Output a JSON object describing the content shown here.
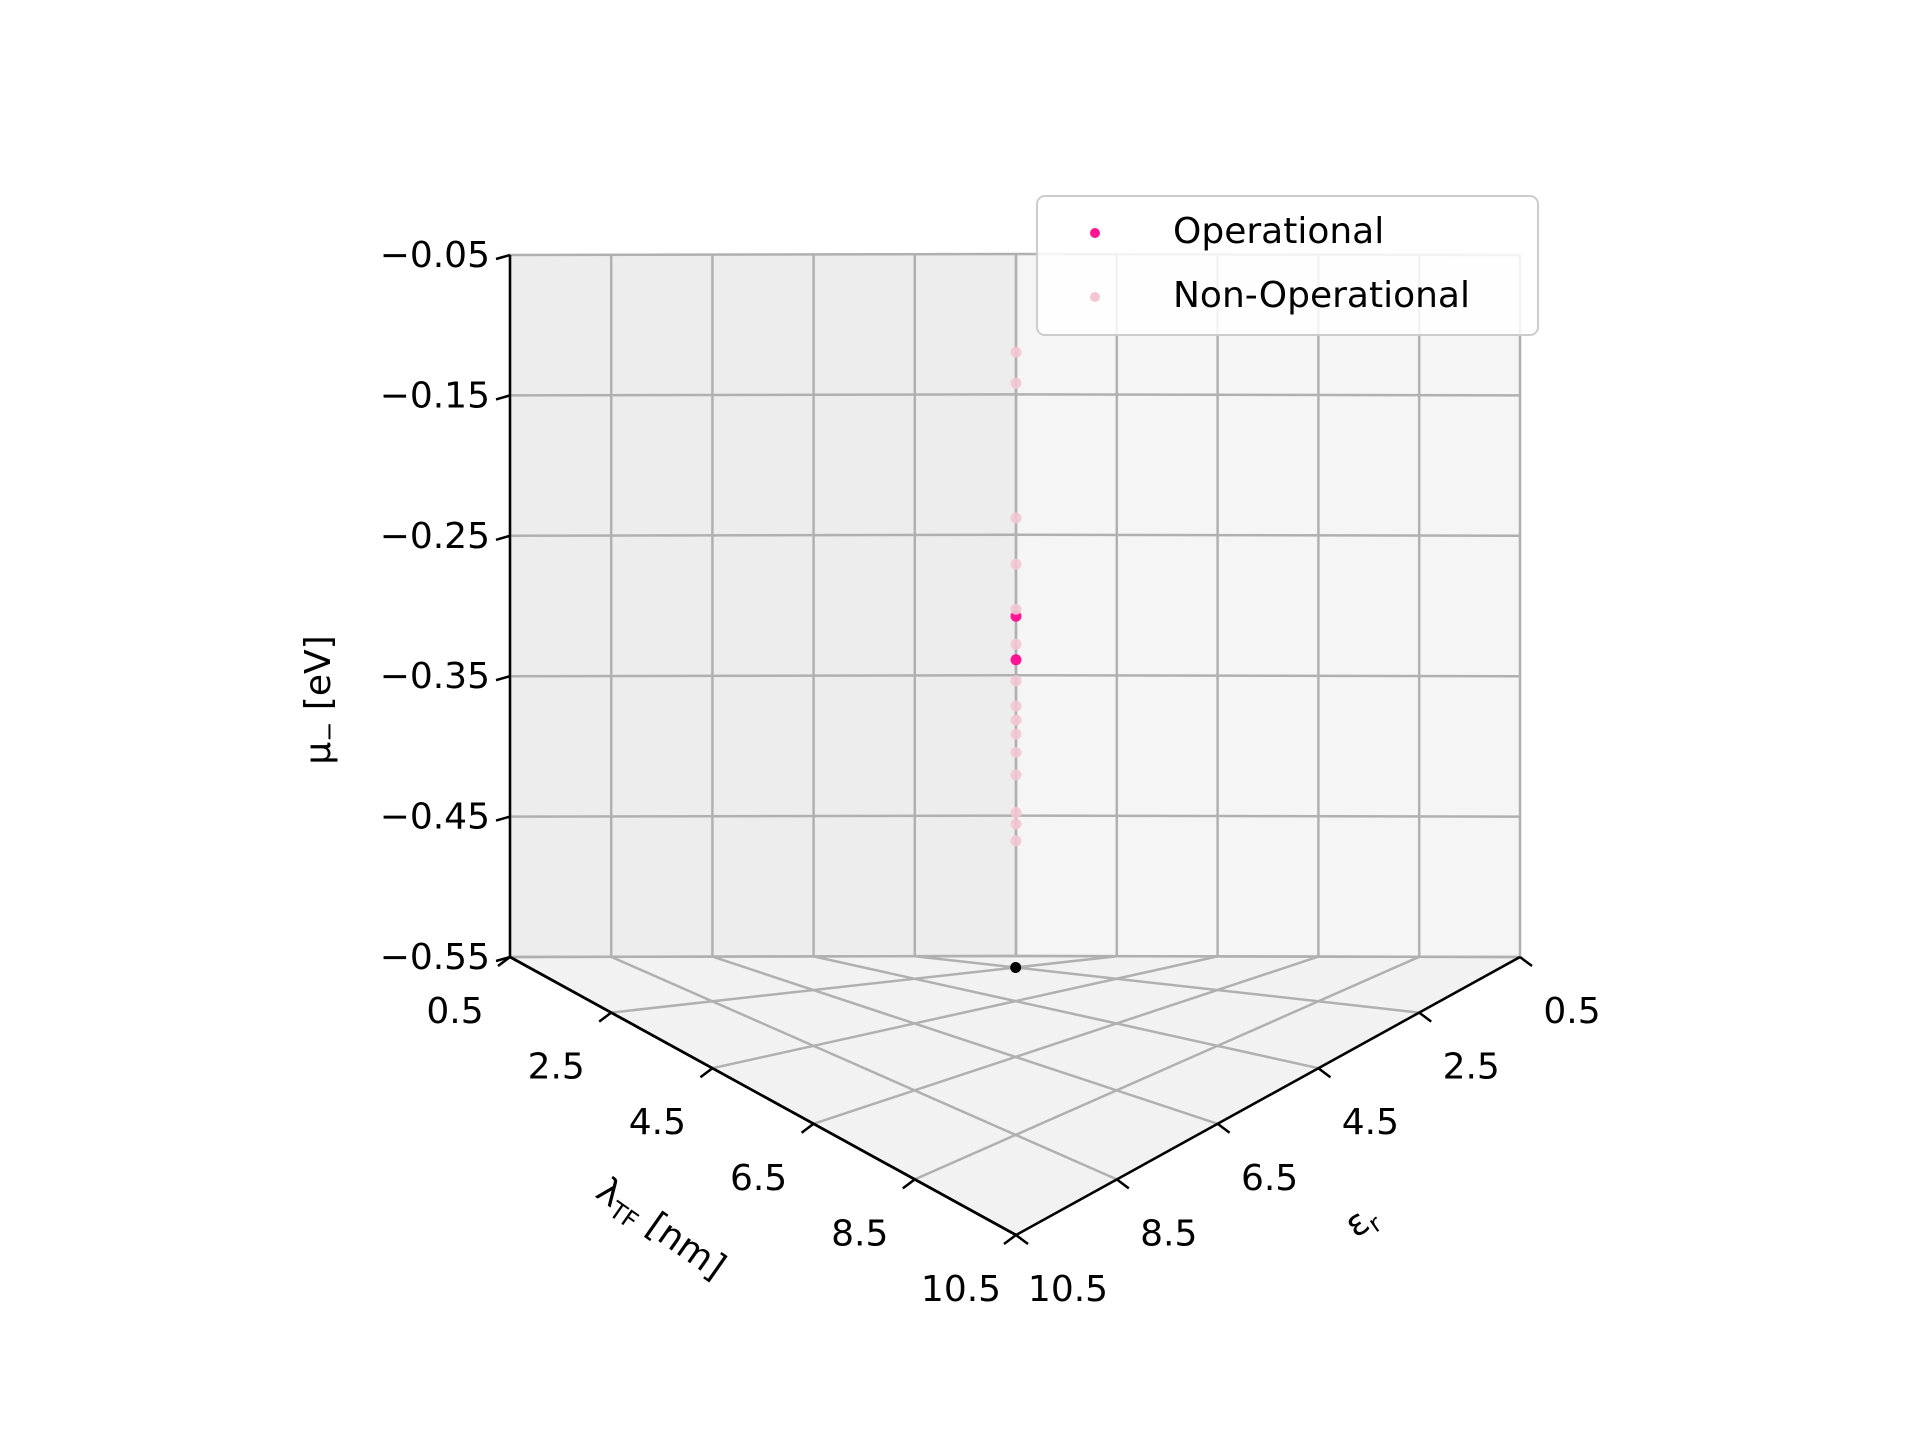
{
  "chart_data": {
    "type": "scatter",
    "projection": "3d",
    "title": "",
    "axes": {
      "x": {
        "label": "ε",
        "label_sub": "r",
        "ticks": [
          "0.5",
          "2.5",
          "4.5",
          "6.5",
          "8.5",
          "10.5"
        ],
        "range": [
          0.5,
          10.5
        ]
      },
      "y": {
        "label": "λ",
        "label_sub": "TF",
        "label_suffix": " [nm]",
        "ticks": [
          "0.5",
          "2.5",
          "4.5",
          "6.5",
          "8.5",
          "10.5"
        ],
        "range": [
          0.5,
          10.5
        ]
      },
      "z": {
        "label": "μ",
        "label_sub": "−",
        "label_suffix": " [eV]",
        "ticks": [
          "−0.05",
          "−0.15",
          "−0.25",
          "−0.35",
          "−0.45",
          "−0.55"
        ],
        "range": [
          -0.55,
          -0.05
        ]
      }
    },
    "grid": true,
    "legend": {
      "placement": "top-right",
      "entries": [
        {
          "name": "Operational",
          "color": "#ff1493"
        },
        {
          "name": "Non-Operational",
          "color": "#f3c6d3"
        }
      ]
    },
    "series": [
      {
        "name": "Operational",
        "color": "#ff1493",
        "points": [
          {
            "x": 0.5,
            "y": 0.5,
            "z": -0.308
          },
          {
            "x": 0.5,
            "y": 0.5,
            "z": -0.339
          }
        ]
      },
      {
        "name": "Non-Operational",
        "color": "#f3c6d3",
        "points": [
          {
            "x": 0.5,
            "y": 0.5,
            "z": -0.12
          },
          {
            "x": 0.5,
            "y": 0.5,
            "z": -0.142
          },
          {
            "x": 0.5,
            "y": 0.5,
            "z": -0.238
          },
          {
            "x": 0.5,
            "y": 0.5,
            "z": -0.271
          },
          {
            "x": 0.5,
            "y": 0.5,
            "z": -0.303
          },
          {
            "x": 0.5,
            "y": 0.5,
            "z": -0.328
          },
          {
            "x": 0.5,
            "y": 0.5,
            "z": -0.354
          },
          {
            "x": 0.5,
            "y": 0.5,
            "z": -0.372
          },
          {
            "x": 0.5,
            "y": 0.5,
            "z": -0.382
          },
          {
            "x": 0.5,
            "y": 0.5,
            "z": -0.392
          },
          {
            "x": 0.5,
            "y": 0.5,
            "z": -0.405
          },
          {
            "x": 0.5,
            "y": 0.5,
            "z": -0.421
          },
          {
            "x": 0.5,
            "y": 0.5,
            "z": -0.448
          },
          {
            "x": 0.5,
            "y": 0.5,
            "z": -0.456
          },
          {
            "x": 0.5,
            "y": 0.5,
            "z": -0.468
          }
        ]
      },
      {
        "name": "",
        "color": "#000000",
        "points": [
          {
            "x": 2.5,
            "y": 2.5,
            "z": -0.55
          }
        ]
      }
    ]
  }
}
